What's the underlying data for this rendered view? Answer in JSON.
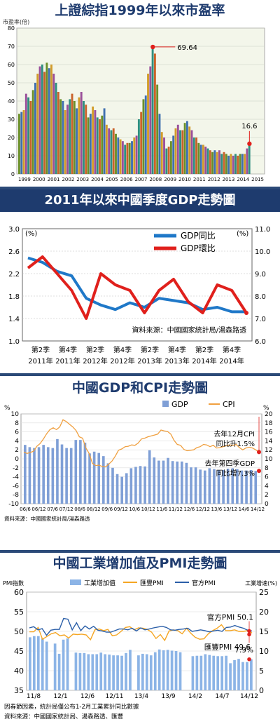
{
  "colors": {
    "title_text": "#1e3b6e",
    "title_bg": "#ffffff",
    "band_bg": "#1e3b6e",
    "band_text": "#ffffff",
    "pe_plot_bg": "#f3f6ea",
    "gdp_blue": "#1f78c8",
    "gdp_red": "#e0201c",
    "chart3_bar": "#7f9fd6",
    "chart3_line": "#f0a040",
    "chart4_bar": "#8cb4e6",
    "chart4_huifeng": "#f5a623",
    "chart4_official": "#2b5fa8",
    "marker_red": "#e0201c"
  },
  "chart_data": [
    {
      "type": "bar",
      "title": "上證綜指1999年以來市盈率",
      "ylabel": "市盈率(倍)",
      "ylim": [
        0,
        80
      ],
      "yticks": [
        0,
        10,
        20,
        30,
        40,
        50,
        60,
        70,
        80
      ],
      "x_labels": [
        "1999",
        "2000",
        "2001",
        "2002",
        "2003",
        "2004",
        "2005",
        "2006",
        "2007",
        "2008",
        "2009",
        "2010",
        "2011",
        "2012",
        "2013",
        "2014",
        "2015"
      ],
      "values": [
        33,
        34,
        35,
        44,
        42,
        40,
        46,
        50,
        55,
        59,
        60,
        56,
        61,
        58,
        60,
        55,
        50,
        45,
        41,
        40,
        35,
        38,
        41,
        44,
        40,
        36,
        42,
        45,
        40,
        38,
        31,
        33,
        37,
        35,
        31,
        30,
        32,
        36,
        27,
        25,
        24,
        25,
        22,
        20,
        19,
        18,
        16,
        17,
        17,
        18,
        20,
        21,
        30,
        34,
        41,
        43,
        55,
        59,
        70,
        66,
        49,
        33,
        23,
        20,
        14,
        15,
        18,
        21,
        25,
        27,
        24,
        24,
        28,
        29,
        26,
        24,
        20,
        20,
        17,
        16,
        16,
        15,
        14,
        13,
        12,
        13,
        12,
        13,
        11,
        12,
        11,
        10,
        11,
        10,
        11,
        10,
        11,
        11,
        11,
        14,
        16.6
      ],
      "annotations": [
        {
          "label": "69.64",
          "value": 69.64,
          "x": "2007"
        },
        {
          "label": "16.6",
          "value": 16.6,
          "x": "2014"
        }
      ]
    },
    {
      "type": "line",
      "title": "2011年以來中國季度GDP走勢圖",
      "x_labels": [
        "第2季\n2011年",
        "第4季\n2011年",
        "第2季\n2012年",
        "第4季\n2012年",
        "第2季\n2013年",
        "第4季\n2013年",
        "第2季\n2014年",
        "第4季\n2014年"
      ],
      "left_axis": {
        "unit": "(%)",
        "ticks": [
          "3.0",
          "2.6",
          "2.2",
          "1.8",
          "1.4",
          "1.0"
        ],
        "ylim": [
          1.0,
          3.0
        ]
      },
      "right_axis": {
        "unit": "(%)",
        "ticks": [
          "11.0",
          "10.0",
          "9.0",
          "8.0",
          "7.0",
          "6.0"
        ],
        "ylim": [
          6.0,
          11.0
        ]
      },
      "series": [
        {
          "name": "GDP同比",
          "axis": "right",
          "values": [
            9.7,
            9.5,
            9.1,
            8.9,
            7.9,
            7.6,
            7.4,
            7.7,
            7.5,
            7.9,
            7.8,
            7.7,
            7.4,
            7.5,
            7.3,
            7.3
          ]
        },
        {
          "name": "GDP環比",
          "axis": "left",
          "values": [
            2.3,
            2.5,
            2.2,
            1.9,
            1.4,
            2.2,
            2.0,
            1.9,
            1.5,
            1.9,
            2.1,
            1.7,
            1.5,
            2.0,
            1.9,
            1.5
          ]
        }
      ],
      "source": "資料來源：中國國家統計局/湯森路透"
    },
    {
      "type": "bar",
      "title": "中國GDP和CPI走勢圖",
      "x_labels": [
        "06/6",
        "06/12",
        "07/6",
        "07/12",
        "08/6",
        "08/12",
        "09/6",
        "09/12",
        "10/6",
        "10/12",
        "11/6",
        "11/12",
        "12/6",
        "12/12",
        "13/6",
        "13/12",
        "14/6",
        "14/12"
      ],
      "left_axis": {
        "unit": "%",
        "ticks": [
          "10",
          "8",
          "6",
          "4",
          "2",
          "0",
          "-2",
          "-4",
          "-6",
          "-8",
          "-10"
        ],
        "ylim": [
          -10,
          10
        ]
      },
      "right_axis": {
        "unit": "%",
        "ticks": [
          "20",
          "18",
          "16",
          "14",
          "12",
          "10",
          "8",
          "6",
          "4",
          "2",
          "0"
        ],
        "ylim": [
          0,
          20
        ]
      },
      "series": [
        {
          "name": "GDP",
          "type": "bar",
          "axis": "right",
          "values": [
            13.1,
            12.6,
            12.4,
            12.6,
            13.1,
            12.6,
            12.4,
            14.4,
            13.2,
            12.4,
            12.4,
            14.2,
            14.2,
            13.6,
            11.2,
            11.6,
            11.3,
            10.6,
            9.0,
            8.0,
            6.6,
            6.0,
            6.8,
            7.9,
            8.2,
            8.4,
            8.3,
            11.9,
            10.3,
            9.6,
            9.6,
            10.2,
            9.5,
            9.4,
            9.4,
            9.1,
            8.1,
            8.1,
            7.6,
            7.4,
            7.9,
            7.7,
            7.5,
            7.5,
            7.8,
            7.9,
            7.7,
            7.4,
            7.4,
            7.5,
            7.3
          ]
        },
        {
          "name": "CPI",
          "type": "line",
          "axis": "left",
          "values": [
            1.5,
            1.2,
            1.4,
            1.7,
            2.8,
            3.4,
            4.4,
            5.6,
            6.5,
            6.9,
            6.5,
            7.1,
            8.7,
            8.3,
            7.7,
            7.1,
            6.3,
            4.9,
            4.6,
            2.4,
            1.2,
            -1.0,
            -1.5,
            -1.4,
            -1.7,
            -1.8,
            -1.2,
            -0.5,
            0.6,
            1.9,
            2.2,
            2.7,
            2.8,
            3.1,
            3.0,
            3.5,
            4.4,
            4.6,
            4.9,
            5.1,
            5.3,
            5.5,
            6.4,
            6.2,
            6.1,
            5.5,
            4.1,
            3.2,
            3.0,
            2.1,
            1.8,
            1.9,
            2.0,
            2.5,
            2.7,
            3.2,
            3.1,
            2.7,
            3.0,
            2.4,
            2.5,
            2.7,
            2.9,
            3.1,
            3.0,
            3.2,
            2.5,
            2.0,
            2.4,
            2.6,
            2.4,
            2.0,
            1.5
          ]
        }
      ],
      "annotations": [
        {
          "text_lines": [
            "去年12月CPI",
            "同比升1.5%"
          ],
          "value": 1.5
        },
        {
          "text_lines": [
            "去年第四季GDP",
            "同比增7.3%"
          ],
          "value": 7.3
        }
      ],
      "source": "資料來源：中國國家統計局/湯森路透"
    },
    {
      "type": "bar",
      "title": "中國工業增加值及PMI走勢圖",
      "x_labels": [
        "11/8",
        "12/1",
        "12/6",
        "12/11",
        "13/4",
        "13/9",
        "14/2",
        "14/7",
        "14/12"
      ],
      "left_axis": {
        "unit": "PMI指數",
        "ticks": [
          "60",
          "55",
          "50",
          "45",
          "40",
          "35"
        ],
        "ylim": [
          35,
          60
        ]
      },
      "right_axis": {
        "unit": "工業增速(%)",
        "ticks": [
          "25",
          "20",
          "15",
          "10",
          "5",
          "0"
        ],
        "ylim": [
          0,
          25
        ]
      },
      "series": [
        {
          "name": "工業增加值",
          "type": "bar",
          "axis": "right",
          "values": [
            13.5,
            13.8,
            13.8,
            13.2,
            12.4,
            null,
            11.9,
            9.3,
            12.9,
            13.2,
            null,
            9.6,
            9.5,
            9.5,
            9.2,
            9.2,
            9.2,
            9.6,
            9.2,
            9.1,
            8.9,
            8.9,
            8.8,
            9.5,
            10.3,
            null,
            8.9,
            9.3,
            9.2,
            8.9,
            9.7,
            10.4,
            10.2,
            10.3,
            10.1,
            10.0,
            9.7,
            null,
            null,
            8.7,
            8.8,
            8.8,
            9.2,
            9.0,
            8.8,
            8.7,
            8.7,
            8.8,
            6.9,
            7.7,
            8.0,
            7.2,
            7.2,
            7.9
          ]
        },
        {
          "name": "匯豐PMI",
          "type": "line",
          "axis": "left",
          "values": [
            49.9,
            49.9,
            51.0,
            48.0,
            48.7,
            49.4,
            49.7,
            48.9,
            49.1,
            48.3,
            49.3,
            49.2,
            49.3,
            49.1,
            47.9,
            50.4,
            50.6,
            50.2,
            50.5,
            48.9,
            49.1,
            50.0,
            51.0,
            51.2,
            50.4,
            50.9,
            50.8,
            50.5,
            49.8,
            48.2,
            49.2,
            47.7,
            50.1,
            50.4,
            50.2,
            49.4,
            50.8,
            49.5,
            48.5,
            48.0,
            48.1,
            49.4,
            50.2,
            50.8,
            51.7,
            50.2,
            50.2,
            50.4,
            50.0,
            50.0,
            50.2,
            49.6
          ]
        },
        {
          "name": "官方PMI",
          "type": "line",
          "axis": "left",
          "values": [
            50.9,
            51.2,
            50.4,
            50.7,
            49.0,
            50.3,
            50.5,
            50.5,
            53.3,
            53.1,
            50.4,
            52.2,
            50.2,
            51.4,
            50.6,
            51.3,
            50.3,
            50.1,
            49.8,
            49.8,
            50.2,
            50.6,
            50.6,
            50.4,
            50.8,
            50.1,
            50.9,
            50.4,
            50.6,
            50.9,
            51.1,
            51.3,
            51.0,
            50.4,
            50.3,
            50.5,
            50.6,
            50.8,
            50.0,
            50.2,
            50.4,
            50.2,
            49.9,
            50.1,
            50.3,
            50.0,
            51.0,
            51.1,
            51.5,
            51.1,
            50.8,
            50.3,
            50.1
          ]
        }
      ],
      "annotations": [
        {
          "text": "官方PMI 50.1",
          "value": 50.1
        },
        {
          "text": "匯豐PMI 49.6",
          "value": 49.6
        },
        {
          "text": "7.9%",
          "value": 7.9
        }
      ],
      "notes": [
        "因春節因素，統計局僅公布1-2月工業累計同比數據",
        "資料來源：中國國家統計局、湯森路透、匯豐"
      ]
    }
  ]
}
